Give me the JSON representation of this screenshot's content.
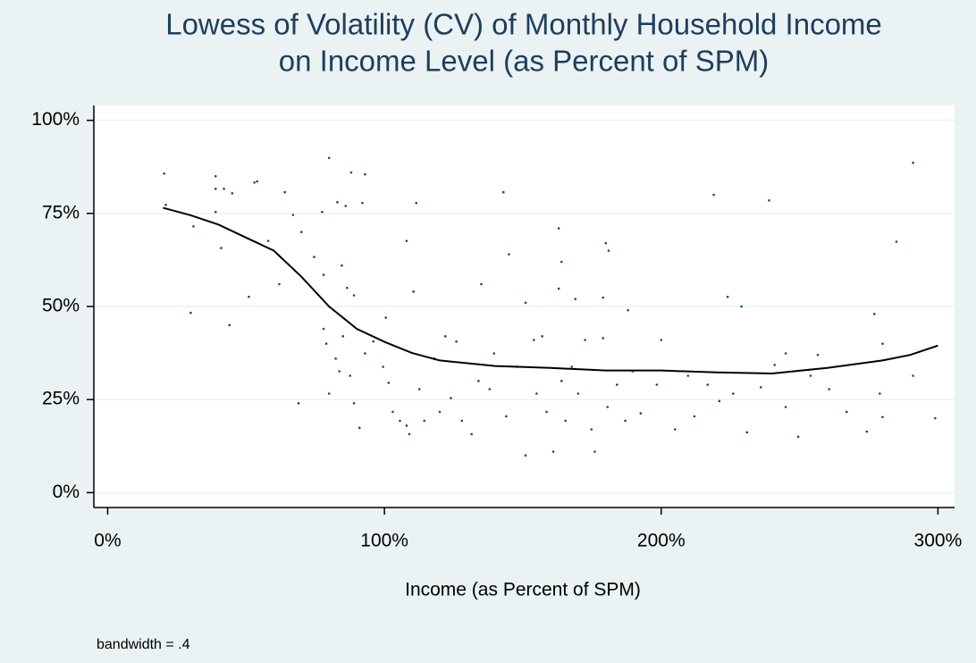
{
  "chart_data": {
    "type": "scatter",
    "title": [
      "Lowess of Volatility (CV) of Monthly Household Income",
      "on Income Level (as Percent of SPM)"
    ],
    "x_label": "Income (as Percent of SPM)",
    "annotation": "bandwidth = .4",
    "xlim": [
      -5,
      306
    ],
    "ylim": [
      -4,
      104
    ],
    "xticks": [
      {
        "value": 0,
        "label": "0%"
      },
      {
        "value": 100,
        "label": "100%"
      },
      {
        "value": 200,
        "label": "200%"
      },
      {
        "value": 300,
        "label": "300%"
      }
    ],
    "yticks": [
      {
        "value": 0,
        "label": "0%"
      },
      {
        "value": 25,
        "label": "25%"
      },
      {
        "value": 50,
        "label": "50%"
      },
      {
        "value": 75,
        "label": "75%"
      },
      {
        "value": 100,
        "label": "100%"
      }
    ],
    "grid": true,
    "series": [
      {
        "type": "scatter",
        "color": "#1a476f",
        "x": [
          20.4,
          39,
          53,
          80,
          88,
          93,
          291,
          39,
          42,
          45,
          54,
          64,
          143,
          219,
          239,
          21,
          39,
          31,
          67,
          77.5,
          83,
          86,
          92,
          111.5,
          70,
          74.6,
          108,
          163,
          180,
          181,
          285,
          41,
          58,
          84.6,
          145,
          164,
          30,
          44,
          51,
          62,
          78,
          86.5,
          89,
          110.5,
          135,
          151,
          163,
          169,
          179,
          188,
          224,
          229,
          277,
          69,
          78,
          79,
          80,
          82.4,
          83.7,
          85,
          87.6,
          89,
          91,
          93,
          96,
          99.5,
          100.5,
          101.5,
          103,
          105.6,
          108,
          109,
          112.6,
          114.4,
          118,
          120,
          122,
          124,
          126,
          128,
          131.5,
          134,
          138,
          139.6,
          144,
          148,
          151,
          154,
          155,
          157,
          158.6,
          161,
          164,
          165.4,
          167.7,
          170,
          172.5,
          174.8,
          176,
          179,
          180.6,
          184,
          187,
          189.7,
          192.6,
          198.4,
          200,
          205,
          209.7,
          212,
          216.8,
          221,
          226,
          231,
          236,
          241,
          245,
          249.5,
          254,
          256.6,
          260.7,
          267,
          274.3,
          279,
          280,
          291,
          299,
          280,
          245
        ],
        "values": [
          85.7,
          85,
          83.3,
          89.9,
          86,
          85.5,
          88.6,
          81.6,
          81.6,
          80.4,
          83.6,
          80.7,
          80.7,
          80,
          78.5,
          77.3,
          75.4,
          71.5,
          74.6,
          75.4,
          78,
          77,
          77.8,
          77.8,
          70,
          63.3,
          67.6,
          71,
          67,
          65,
          67.4,
          65.7,
          67.6,
          61,
          64,
          62,
          48.3,
          45,
          52.6,
          56,
          58.5,
          55,
          53,
          54,
          56,
          51,
          54.8,
          52,
          52.4,
          49,
          52.6,
          50,
          48,
          24,
          44,
          40,
          26.6,
          36,
          32.6,
          42,
          31.4,
          24,
          17.4,
          37.4,
          40.6,
          33.8,
          47,
          29.5,
          21.7,
          19.3,
          18,
          15.7,
          27.8,
          19.3,
          36,
          21.7,
          42,
          25.4,
          40.6,
          19.3,
          15.7,
          30,
          27.8,
          37.4,
          20.5,
          33.8,
          10,
          41,
          26.6,
          42,
          21.7,
          11,
          30,
          19.3,
          33.8,
          26.6,
          41,
          17,
          11,
          41.5,
          23,
          29,
          19.3,
          32.6,
          21.3,
          29,
          41,
          17,
          31.4,
          20.5,
          29,
          24.6,
          26.6,
          16.2,
          28.3,
          34.3,
          23,
          15,
          31.4,
          37,
          27.8,
          21.7,
          16.4,
          26.6,
          20.3,
          31.4,
          20,
          40,
          37.4
        ]
      },
      {
        "type": "line",
        "color": "#000000",
        "x": [
          20,
          30,
          40,
          50,
          60,
          70,
          80,
          90,
          100,
          110,
          120,
          140,
          160,
          180,
          200,
          220,
          240,
          260,
          280,
          290,
          300
        ],
        "values": [
          76.5,
          74.5,
          72,
          68.5,
          65,
          58,
          50,
          44,
          40.5,
          37.5,
          35.5,
          34,
          33.5,
          32.8,
          32.8,
          32.3,
          32,
          33.5,
          35.5,
          37,
          39.5
        ]
      }
    ]
  }
}
